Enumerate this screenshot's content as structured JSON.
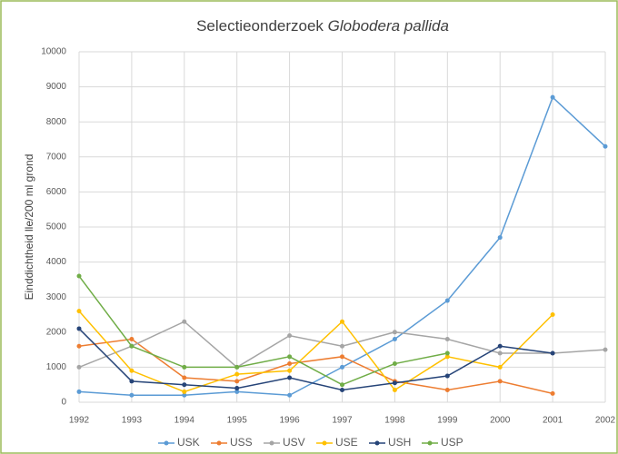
{
  "chart_data": {
    "type": "line",
    "title": [
      "Selectieonderzoek",
      "Globodera pallida"
    ],
    "y_label": "Einddichtheid lle/200 ml grond",
    "categories": [
      "1992",
      "1993",
      "1994",
      "1995",
      "1996",
      "1997",
      "1998",
      "1999",
      "2000",
      "2001",
      "2002"
    ],
    "series": [
      {
        "name": "USK",
        "color": "#5b9bd5",
        "values": [
          300,
          200,
          200,
          300,
          200,
          1000,
          1800,
          2900,
          4700,
          8700,
          7300
        ]
      },
      {
        "name": "USS",
        "color": "#ed7d31",
        "values": [
          1600,
          1800,
          700,
          600,
          1100,
          1300,
          600,
          350,
          600,
          250,
          null
        ]
      },
      {
        "name": "USV",
        "color": "#a5a5a5",
        "values": [
          1000,
          1600,
          2300,
          1000,
          1900,
          1600,
          2000,
          1800,
          1400,
          1400,
          1500
        ]
      },
      {
        "name": "USE",
        "color": "#ffc000",
        "values": [
          2600,
          900,
          300,
          800,
          900,
          2300,
          350,
          1300,
          1000,
          2500,
          null
        ]
      },
      {
        "name": "USH",
        "color": "#264478",
        "values": [
          2100,
          600,
          500,
          400,
          700,
          350,
          550,
          750,
          1600,
          1400,
          null
        ]
      },
      {
        "name": "USP",
        "color": "#70ad47",
        "values": [
          3600,
          1600,
          1000,
          1000,
          1300,
          500,
          1100,
          1400,
          null,
          null,
          null
        ]
      }
    ],
    "ylim": [
      0,
      10000
    ],
    "yticks": [
      0,
      1000,
      2000,
      3000,
      4000,
      5000,
      6000,
      7000,
      8000,
      9000,
      10000
    ],
    "grid": true,
    "legend": "bottom"
  }
}
